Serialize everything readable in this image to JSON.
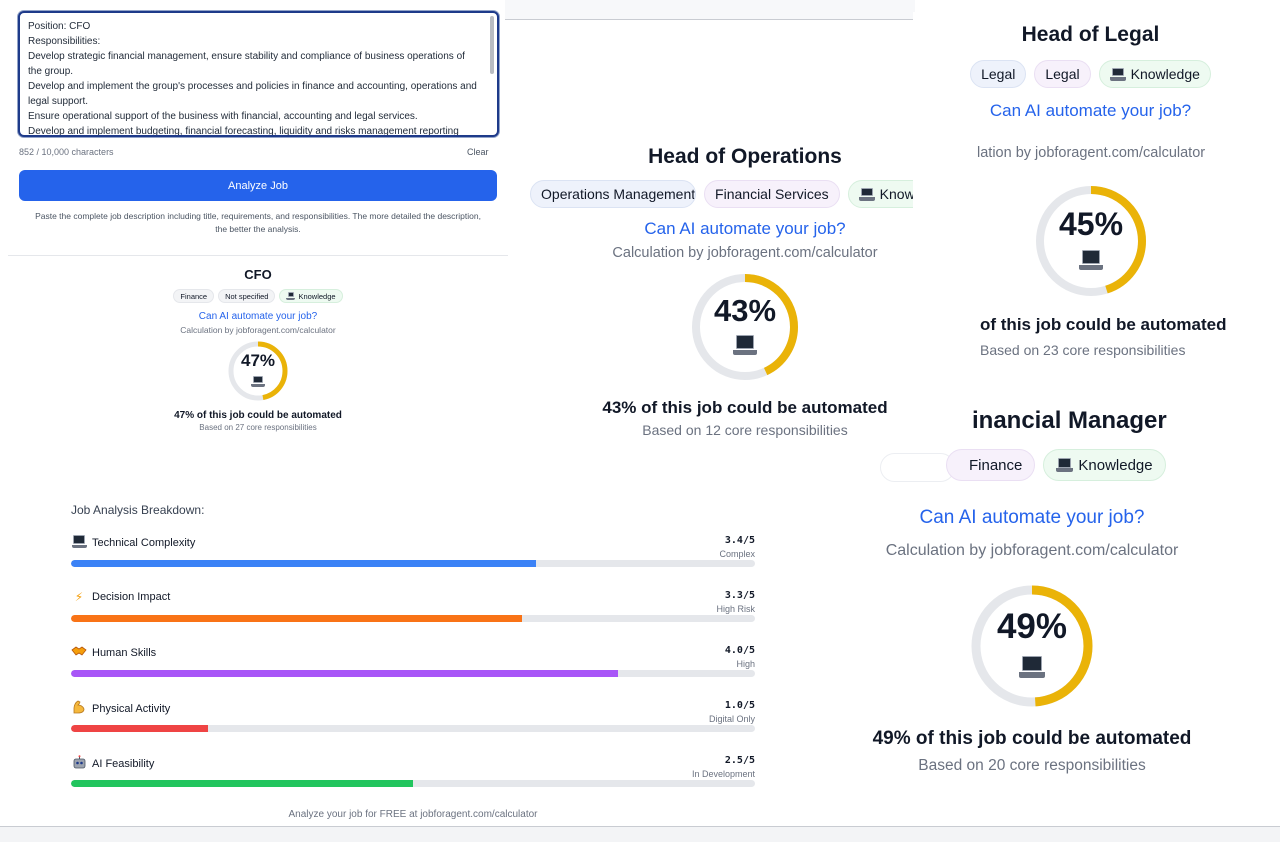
{
  "input": {
    "lines": [
      "Position: CFO",
      "Responsibilities:",
      "Develop strategic financial management, ensure stability and compliance of business operations of the group.",
      "Develop and implement the group's processes and policies in finance and accounting, operations and legal support.",
      "Ensure operational support of the business with financial, accounting and legal services.",
      "Develop and implement budgeting, financial forecasting, liquidity and risks management reporting"
    ],
    "char_count": "852 / 10,000 characters",
    "clear_label": "Clear",
    "analyze_label": "Analyze Job",
    "hint": "Paste the complete job description including title, requirements, and responsibilities. The more detailed the description, the better the analysis."
  },
  "cards": {
    "cfo": {
      "title": "CFO",
      "tags": [
        "Finance",
        "Not specified",
        "Knowledge"
      ],
      "question": "Can AI automate your job?",
      "calc": "Calculation by jobforagent.com/calculator",
      "percent_value": 47,
      "percent": "47%",
      "automated": "47% of this job could be automated",
      "based": "Based on 27 core responsibilities"
    },
    "operations": {
      "title": "Head of Operations",
      "tags": [
        "Operations Management",
        "Financial Services",
        "Knowledge"
      ],
      "question": "Can AI automate your job?",
      "calc": "Calculation by jobforagent.com/calculator",
      "percent_value": 43,
      "percent": "43%",
      "automated": "43% of this job could be automated",
      "based": "Based on 12 core responsibilities"
    },
    "legal": {
      "title": "Head of Legal",
      "tags": [
        "Legal",
        "Legal",
        "Knowledge"
      ],
      "question": "Can AI automate your job?",
      "calc": "Calculation by jobforagent.com/calculator",
      "calc_visible": "lation by jobforagent.com/calculator",
      "percent_value": 45,
      "percent": "45%",
      "automated": "of this job could be automated",
      "based": "Based on 23 core responsibilities"
    },
    "financial": {
      "title_visible": "inancial Manager",
      "tags": [
        "Finance",
        "Knowledge"
      ],
      "question": "Can AI automate your job?",
      "calc": "Calculation by jobforagent.com/calculator",
      "percent_value": 49,
      "percent": "49%",
      "automated": "49% of this job could be automated",
      "based": "Based on 20 core responsibilities"
    }
  },
  "breakdown": {
    "title": "Job Analysis Breakdown:",
    "metrics": [
      {
        "icon": "laptop-icon",
        "label": "Technical Complexity",
        "score": "3.4/5",
        "value": 3.4,
        "level": "Complex",
        "color": "#3b82f6"
      },
      {
        "icon": "lightning-icon",
        "label": "Decision Impact",
        "score": "3.3/5",
        "value": 3.3,
        "level": "High Risk",
        "color": "#f97316"
      },
      {
        "icon": "handshake-icon",
        "label": "Human Skills",
        "score": "4.0/5",
        "value": 4.0,
        "level": "High",
        "color": "#a855f7"
      },
      {
        "icon": "flexed-biceps-icon",
        "label": "Physical Activity",
        "score": "1.0/5",
        "value": 1.0,
        "level": "Digital Only",
        "color": "#ef4444"
      },
      {
        "icon": "robot-icon",
        "label": "AI Feasibility",
        "score": "2.5/5",
        "value": 2.5,
        "level": "In Development",
        "color": "#22c55e"
      }
    ],
    "max": 5,
    "footer": "Analyze your job for FREE at jobforagent.com/calculator"
  },
  "colors": {
    "accent": "#2563eb",
    "donut": "#eab308",
    "donut_track": "#e5e7eb"
  }
}
